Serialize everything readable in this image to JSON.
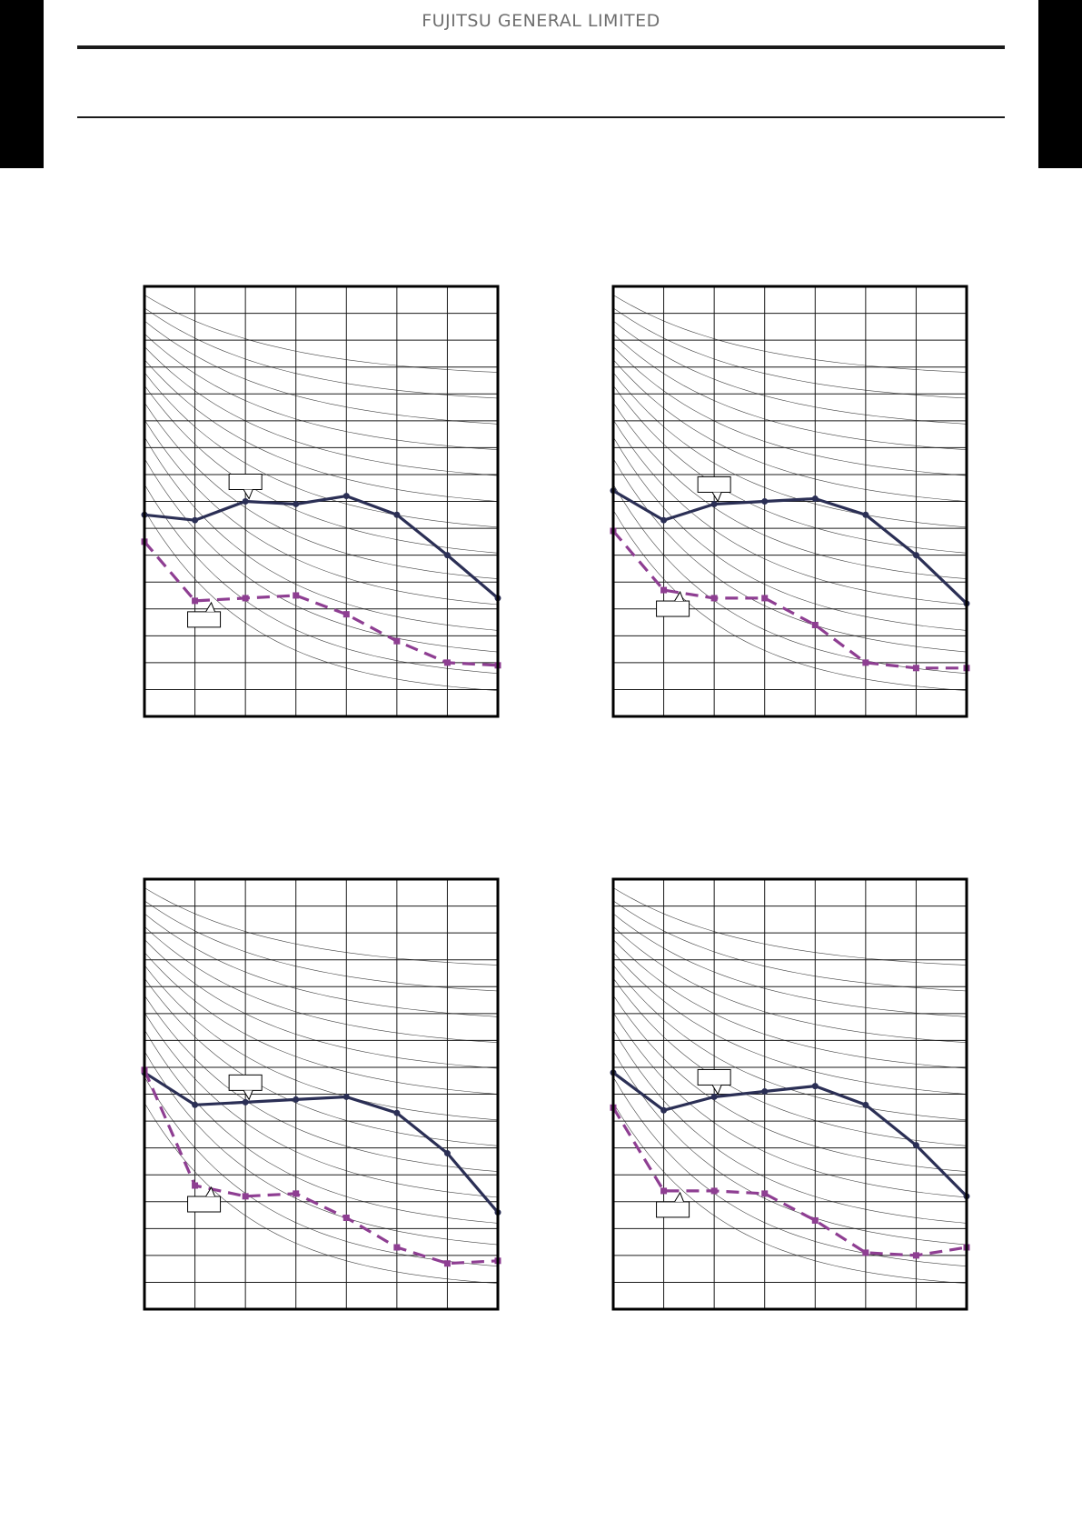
{
  "header": {
    "company": "FUJITSU GENERAL LIMITED"
  },
  "colors": {
    "series_solid": "#2b2f55",
    "series_dashed": "#8e3e92",
    "grid": "#1a1a1a",
    "curves": "#444444"
  },
  "chart_data": [
    {
      "type": "line",
      "grid": true,
      "xlim": [
        0,
        7
      ],
      "ylim": [
        0,
        16
      ],
      "x": [
        0,
        1,
        2,
        3,
        4,
        5,
        6,
        7
      ],
      "series": [
        {
          "values": [
            7.5,
            7.3,
            8.0,
            7.9,
            8.2,
            7.5,
            6.0,
            4.4
          ]
        },
        {
          "values": [
            6.5,
            4.3,
            4.4,
            4.5,
            3.8,
            2.8,
            2.0,
            1.9
          ]
        }
      ]
    },
    {
      "type": "line",
      "grid": true,
      "xlim": [
        0,
        7
      ],
      "ylim": [
        0,
        16
      ],
      "x": [
        0,
        1,
        2,
        3,
        4,
        5,
        6,
        7
      ],
      "series": [
        {
          "values": [
            8.4,
            7.3,
            7.9,
            8.0,
            8.1,
            7.5,
            6.0,
            4.2
          ]
        },
        {
          "values": [
            6.9,
            4.7,
            4.4,
            4.4,
            3.4,
            2.0,
            1.8,
            1.8
          ]
        }
      ]
    },
    {
      "type": "line",
      "grid": true,
      "xlim": [
        0,
        7
      ],
      "ylim": [
        0,
        16
      ],
      "x": [
        0,
        1,
        2,
        3,
        4,
        5,
        6,
        7
      ],
      "series": [
        {
          "values": [
            8.8,
            7.6,
            7.7,
            7.8,
            7.9,
            7.3,
            5.8,
            3.6
          ]
        },
        {
          "values": [
            8.9,
            4.6,
            4.2,
            4.3,
            3.4,
            2.3,
            1.7,
            1.8
          ]
        }
      ]
    },
    {
      "type": "line",
      "grid": true,
      "xlim": [
        0,
        7
      ],
      "ylim": [
        0,
        16
      ],
      "x": [
        0,
        1,
        2,
        3,
        4,
        5,
        6,
        7
      ],
      "series": [
        {
          "values": [
            8.8,
            7.4,
            7.9,
            8.1,
            8.3,
            7.6,
            6.1,
            4.2
          ]
        },
        {
          "values": [
            7.5,
            4.4,
            4.4,
            4.3,
            3.3,
            2.1,
            2.0,
            2.3
          ]
        }
      ]
    }
  ]
}
